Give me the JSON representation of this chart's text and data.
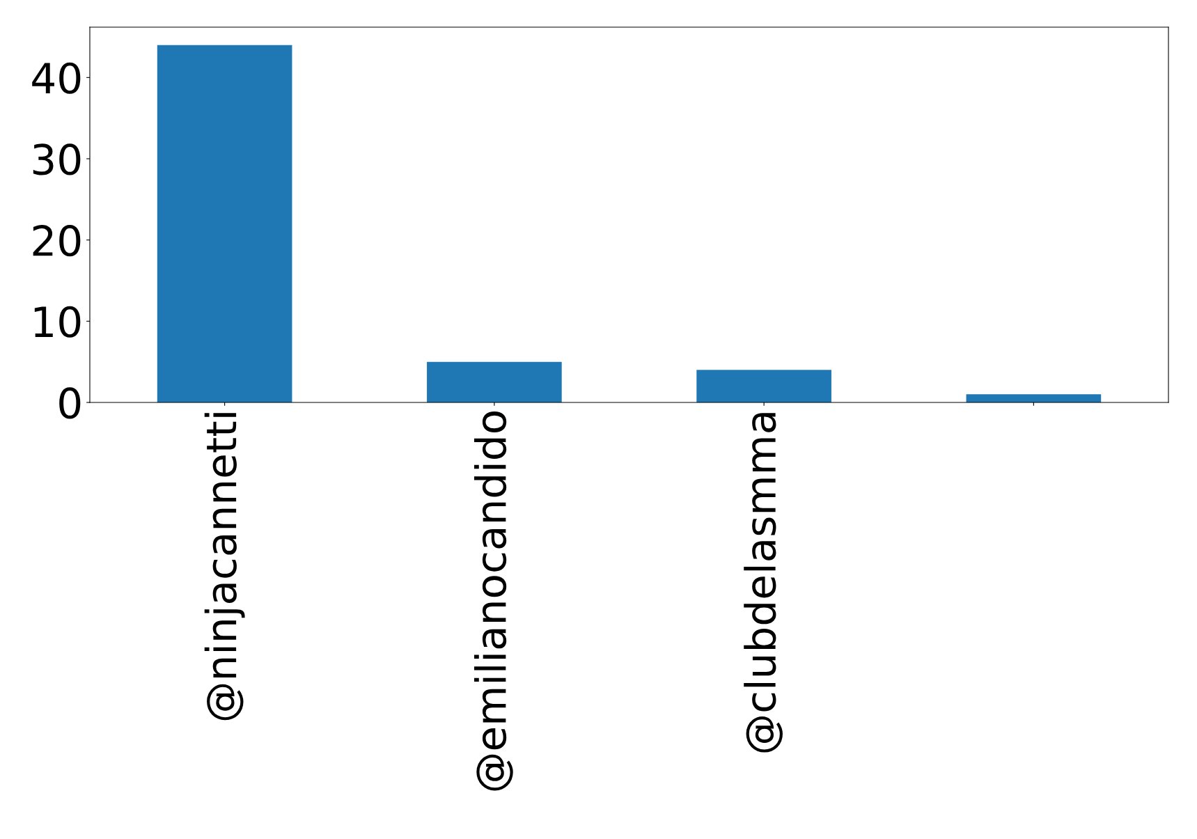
{
  "chart_data": {
    "type": "bar",
    "categories": [
      "@ninjacannetti",
      "@emilianocandido",
      "@clubdelasmma",
      null
    ],
    "values": [
      44,
      5,
      4,
      1
    ],
    "color": "#1f77b4",
    "ylim": [
      0,
      46.2
    ],
    "yticks": [
      0,
      10,
      20,
      30,
      40
    ],
    "grid": false,
    "legend": false
  }
}
